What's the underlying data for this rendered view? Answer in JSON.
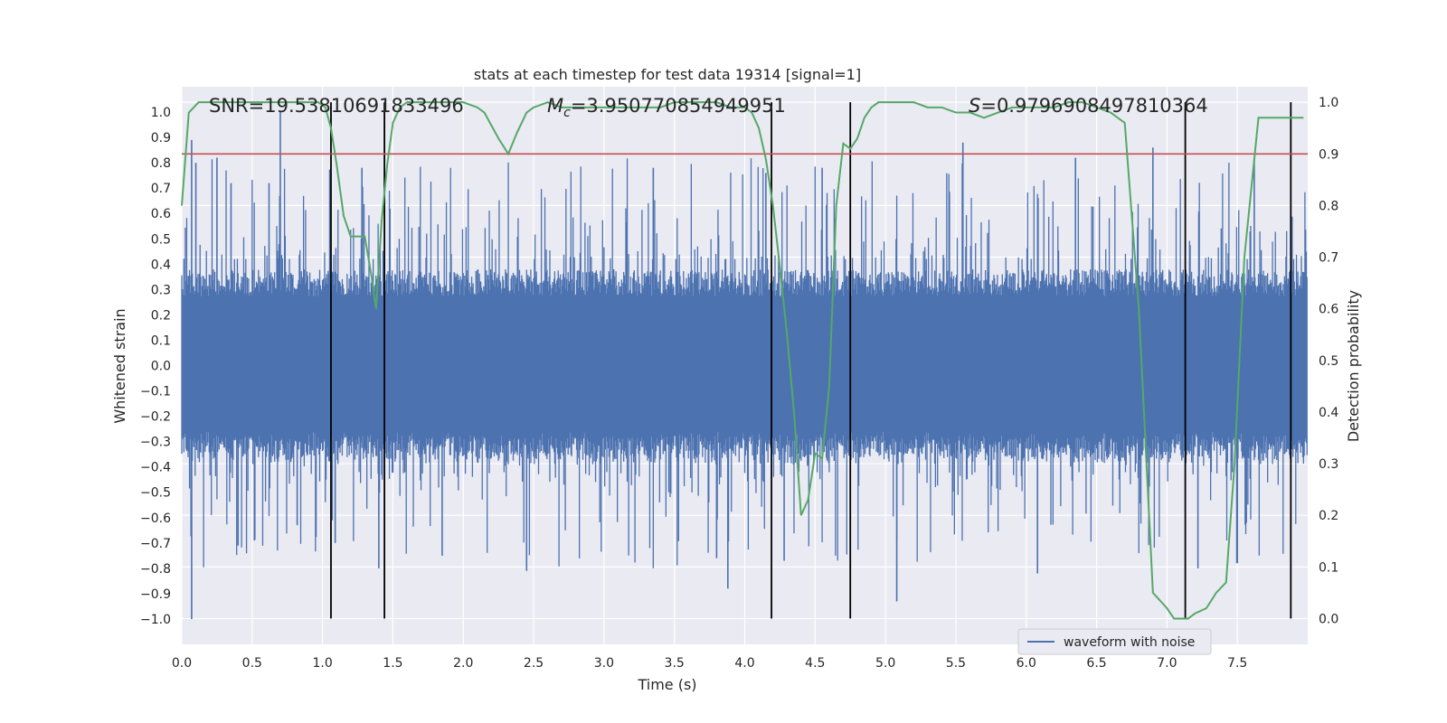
{
  "chart_data": {
    "type": "line",
    "title": "stats at each timestep for test data 19314 [signal=1]",
    "xlabel": "Time (s)",
    "ylabel_left": "Whitened strain",
    "ylabel_right": "Detection probability",
    "xlim": [
      0.0,
      8.0
    ],
    "ylim_left": [
      -1.1,
      1.1
    ],
    "ylim_right": [
      -0.05,
      1.03
    ],
    "grid": true,
    "legend_location": "lower-right",
    "x_ticks": [
      0.0,
      0.5,
      1.0,
      1.5,
      2.0,
      2.5,
      3.0,
      3.5,
      4.0,
      4.5,
      5.0,
      5.5,
      6.0,
      6.5,
      7.0,
      7.5
    ],
    "x_tick_labels": [
      "0.0",
      "0.5",
      "1.0",
      "1.5",
      "2.0",
      "2.5",
      "3.0",
      "3.5",
      "4.0",
      "4.5",
      "5.0",
      "5.5",
      "6.0",
      "6.5",
      "7.0",
      "7.5"
    ],
    "y_left_ticks": [
      -1.0,
      -0.9,
      -0.8,
      -0.7,
      -0.6,
      -0.5,
      -0.4,
      -0.3,
      -0.2,
      -0.1,
      0.0,
      0.1,
      0.2,
      0.3,
      0.4,
      0.5,
      0.6,
      0.7,
      0.8,
      0.9,
      1.0
    ],
    "y_left_tick_labels": [
      "−1.0",
      "−0.9",
      "−0.8",
      "−0.7",
      "−0.6",
      "−0.5",
      "−0.4",
      "−0.3",
      "−0.2",
      "−0.1",
      "0.0",
      "0.1",
      "0.2",
      "0.3",
      "0.4",
      "0.5",
      "0.6",
      "0.7",
      "0.8",
      "0.9",
      "1.0"
    ],
    "y_right_ticks": [
      0.0,
      0.1,
      0.2,
      0.3,
      0.4,
      0.5,
      0.6,
      0.7,
      0.8,
      0.9,
      1.0
    ],
    "y_right_tick_labels": [
      "0.0",
      "0.1",
      "0.2",
      "0.3",
      "0.4",
      "0.5",
      "0.6",
      "0.7",
      "0.8",
      "0.9",
      "1.0"
    ],
    "annotations": {
      "snr": "SNR=19.53810691833496",
      "mc_symbol": "M",
      "mc_subscript": "c",
      "mc_value": "=3.950770854949951",
      "s_symbol": "S",
      "s_value": "=0.9796908497810364"
    },
    "threshold": {
      "value": 0.9,
      "axis": "right",
      "color": "#c44e52"
    },
    "vertical_lines": [
      1.06,
      1.44,
      4.19,
      4.75,
      7.13,
      7.88
    ],
    "waveform": {
      "name": "waveform with noise",
      "color": "#4c72b0",
      "envelope_typical": 0.38,
      "extreme_points": [
        {
          "x": 0.07,
          "y": -1.0
        },
        {
          "x": 0.07,
          "y": 0.89
        },
        {
          "x": 0.1,
          "y": 0.8
        },
        {
          "x": 0.25,
          "y": 0.82
        },
        {
          "x": 0.35,
          "y": 0.72
        },
        {
          "x": 0.4,
          "y": -0.71
        },
        {
          "x": 0.62,
          "y": 0.72
        },
        {
          "x": 0.7,
          "y": 1.0
        },
        {
          "x": 0.82,
          "y": -0.63
        },
        {
          "x": 1.09,
          "y": -0.7
        },
        {
          "x": 1.28,
          "y": 0.78
        },
        {
          "x": 1.4,
          "y": -0.8
        },
        {
          "x": 1.85,
          "y": -0.75
        },
        {
          "x": 2.45,
          "y": -0.81
        },
        {
          "x": 3.35,
          "y": 0.78
        },
        {
          "x": 3.8,
          "y": -0.76
        },
        {
          "x": 3.88,
          "y": -0.88
        },
        {
          "x": 4.15,
          "y": 0.76
        },
        {
          "x": 4.28,
          "y": -0.77
        },
        {
          "x": 4.55,
          "y": 0.78
        },
        {
          "x": 5.08,
          "y": -0.93
        },
        {
          "x": 5.55,
          "y": 0.88
        },
        {
          "x": 6.08,
          "y": -0.82
        },
        {
          "x": 6.35,
          "y": 0.82
        },
        {
          "x": 6.9,
          "y": 0.86
        },
        {
          "x": 7.22,
          "y": -0.8
        },
        {
          "x": 7.5,
          "y": -0.78
        },
        {
          "x": 7.62,
          "y": 0.81
        }
      ]
    },
    "detection_probability": {
      "color": "#55a868",
      "x": [
        0.0,
        0.05,
        0.12,
        0.2,
        0.3,
        0.4,
        0.5,
        0.6,
        0.7,
        0.8,
        0.9,
        0.97,
        1.02,
        1.06,
        1.1,
        1.15,
        1.2,
        1.25,
        1.3,
        1.35,
        1.38,
        1.42,
        1.46,
        1.5,
        1.55,
        1.6,
        1.7,
        1.8,
        1.9,
        2.0,
        2.1,
        2.15,
        2.25,
        2.32,
        2.38,
        2.45,
        2.5,
        2.6,
        2.7,
        2.8,
        2.9,
        3.0,
        3.1,
        3.2,
        3.3,
        3.4,
        3.5,
        3.6,
        3.7,
        3.8,
        3.9,
        4.0,
        4.05,
        4.1,
        4.15,
        4.2,
        4.25,
        4.3,
        4.35,
        4.4,
        4.45,
        4.5,
        4.55,
        4.6,
        4.65,
        4.7,
        4.75,
        4.8,
        4.85,
        4.9,
        4.95,
        5.0,
        5.1,
        5.2,
        5.3,
        5.4,
        5.5,
        5.6,
        5.7,
        5.8,
        5.9,
        6.0,
        6.1,
        6.2,
        6.3,
        6.4,
        6.5,
        6.6,
        6.7,
        6.8,
        6.9,
        7.0,
        7.05,
        7.1,
        7.15,
        7.2,
        7.28,
        7.35,
        7.42,
        7.48,
        7.55,
        7.65,
        7.72,
        7.8,
        7.86,
        7.92,
        7.97
      ],
      "y": [
        0.8,
        0.98,
        1.0,
        1.0,
        1.0,
        1.0,
        1.0,
        1.0,
        1.0,
        1.0,
        1.0,
        1.0,
        0.99,
        0.95,
        0.88,
        0.78,
        0.74,
        0.74,
        0.74,
        0.66,
        0.6,
        0.77,
        0.88,
        0.96,
        0.99,
        1.0,
        1.0,
        1.0,
        1.0,
        1.0,
        0.99,
        0.98,
        0.93,
        0.9,
        0.94,
        0.98,
        0.99,
        1.0,
        0.99,
        0.99,
        0.99,
        0.99,
        0.99,
        0.99,
        0.99,
        0.99,
        1.0,
        1.0,
        1.0,
        1.0,
        0.99,
        0.99,
        0.98,
        0.95,
        0.89,
        0.8,
        0.68,
        0.55,
        0.4,
        0.2,
        0.23,
        0.32,
        0.31,
        0.45,
        0.8,
        0.92,
        0.91,
        0.93,
        0.97,
        0.99,
        1.0,
        1.0,
        1.0,
        1.0,
        0.99,
        0.99,
        0.98,
        0.98,
        0.97,
        0.98,
        0.99,
        0.99,
        0.99,
        0.99,
        1.0,
        1.0,
        0.99,
        0.98,
        0.96,
        0.6,
        0.05,
        0.02,
        0.0,
        0.0,
        0.0,
        0.01,
        0.02,
        0.05,
        0.07,
        0.3,
        0.7,
        0.97,
        0.97,
        0.97,
        0.97,
        0.97,
        0.97
      ]
    }
  }
}
